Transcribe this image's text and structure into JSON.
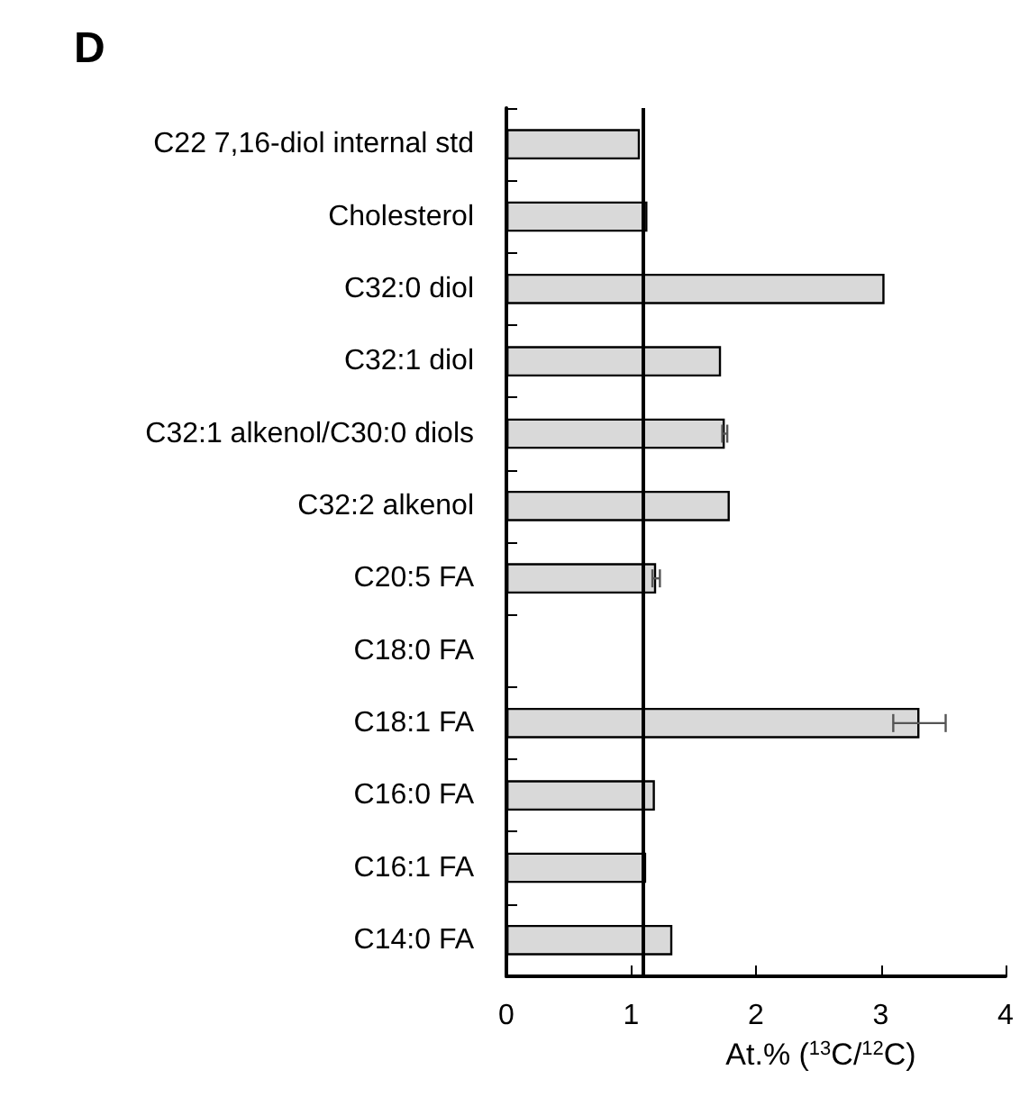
{
  "chart_data": {
    "type": "bar",
    "orientation": "horizontal",
    "title": "D",
    "xlabel": "At.% ($^{13}$C/$^{12}$C)",
    "categories": [
      "C22 7,16-diol internal std",
      "Cholesterol",
      "C32:0 diol",
      "C32:1 diol",
      "C32:1 alkenol/C30:0 diols",
      "C32:2 alkenol",
      "C20:5 FA",
      "C18:0 FA",
      "C18:1 FA",
      "C16:0 FA",
      "C16:1 FA",
      "C14:0 FA"
    ],
    "values": [
      1.07,
      1.13,
      3.03,
      1.72,
      1.75,
      1.79,
      1.2,
      null,
      3.31,
      1.19,
      1.12,
      1.33
    ],
    "errors": [
      null,
      null,
      null,
      null,
      0.02,
      null,
      0.03,
      null,
      0.21,
      null,
      null,
      null
    ],
    "color": "#d9d9d9",
    "xlim": [
      0,
      4
    ],
    "xticks": [
      0,
      1,
      2,
      3,
      4
    ],
    "ref_lines": [
      {
        "axis": "x",
        "value": 1.1,
        "color": "#000000"
      }
    ],
    "grid": false
  }
}
